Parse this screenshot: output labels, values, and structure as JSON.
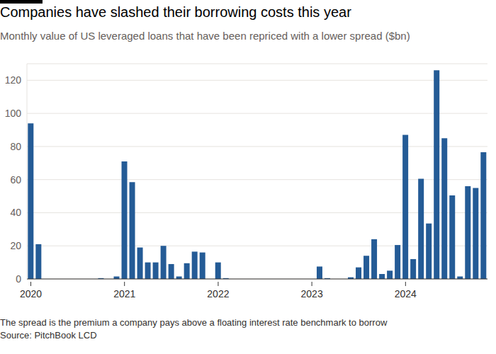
{
  "chart_data": {
    "type": "bar",
    "title": "Companies have slashed their borrowing costs this year",
    "subtitle": "Monthly value of US leveraged loans that have been repriced with a lower spread ($bn)",
    "footnote": "The spread is the premium a company pays above a floating interest rate benchmark to borrow",
    "source": "Source: PitchBook LCD",
    "categories": [
      "2020",
      null,
      null,
      null,
      null,
      null,
      null,
      null,
      null,
      null,
      null,
      null,
      "2021",
      null,
      null,
      null,
      null,
      null,
      null,
      null,
      null,
      null,
      null,
      null,
      "2022",
      null,
      null,
      null,
      null,
      null,
      null,
      null,
      null,
      null,
      null,
      null,
      "2023",
      null,
      null,
      null,
      null,
      null,
      null,
      null,
      null,
      null,
      null,
      null,
      "2024",
      null,
      null,
      null,
      null,
      null,
      null,
      null,
      null,
      null,
      null
    ],
    "values": [
      94,
      21,
      0,
      0,
      0,
      0,
      0,
      0,
      0,
      0.5,
      0,
      1.5,
      71,
      58.5,
      19,
      10,
      10,
      20,
      9,
      1.5,
      9.5,
      16.5,
      16,
      0,
      10,
      0.5,
      0,
      0,
      0,
      0,
      0,
      0,
      0,
      0,
      0,
      0,
      0,
      7.5,
      0.5,
      0,
      0,
      1,
      7,
      14,
      24,
      3,
      5,
      20.5,
      87,
      12,
      60.5,
      33.5,
      126,
      85,
      50.5,
      1.5,
      56,
      55,
      76.5
    ],
    "color": "#245b96",
    "ylim": [
      0,
      130
    ],
    "yticks": [
      0,
      20,
      40,
      60,
      80,
      100,
      120
    ],
    "grid": true
  }
}
